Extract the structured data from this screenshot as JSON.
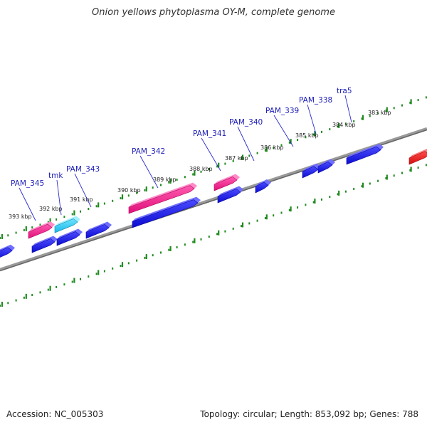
{
  "title": "Onion yellows phytoplasma OY-M, complete genome",
  "footer": {
    "accession": "Accession: NC_005303",
    "summary": "Topology: circular; Length: 853,092 bp; Genes: 788"
  },
  "colors": {
    "backbone": "#888888",
    "tick": "#1f8a1f",
    "gene_forward": "#1a1ae6",
    "gene_pam": "#ff1f8f",
    "gene_tmk": "#22c8f0",
    "gene_red": "#ee1111",
    "label": "#1b1bb8",
    "leader": "#2a2ad0"
  },
  "scale_labels": [
    "393 kbp",
    "392 kbp",
    "391 kbp",
    "390 kbp",
    "389 kbp",
    "388 kbp",
    "387 kbp",
    "386 kbp",
    "385 kbp",
    "384 kbp",
    "383 kbp"
  ],
  "gene_labels": [
    "PAM_345",
    "tmk",
    "PAM_343",
    "PAM_342",
    "PAM_341",
    "PAM_340",
    "PAM_339",
    "PAM_338",
    "tra5"
  ]
}
